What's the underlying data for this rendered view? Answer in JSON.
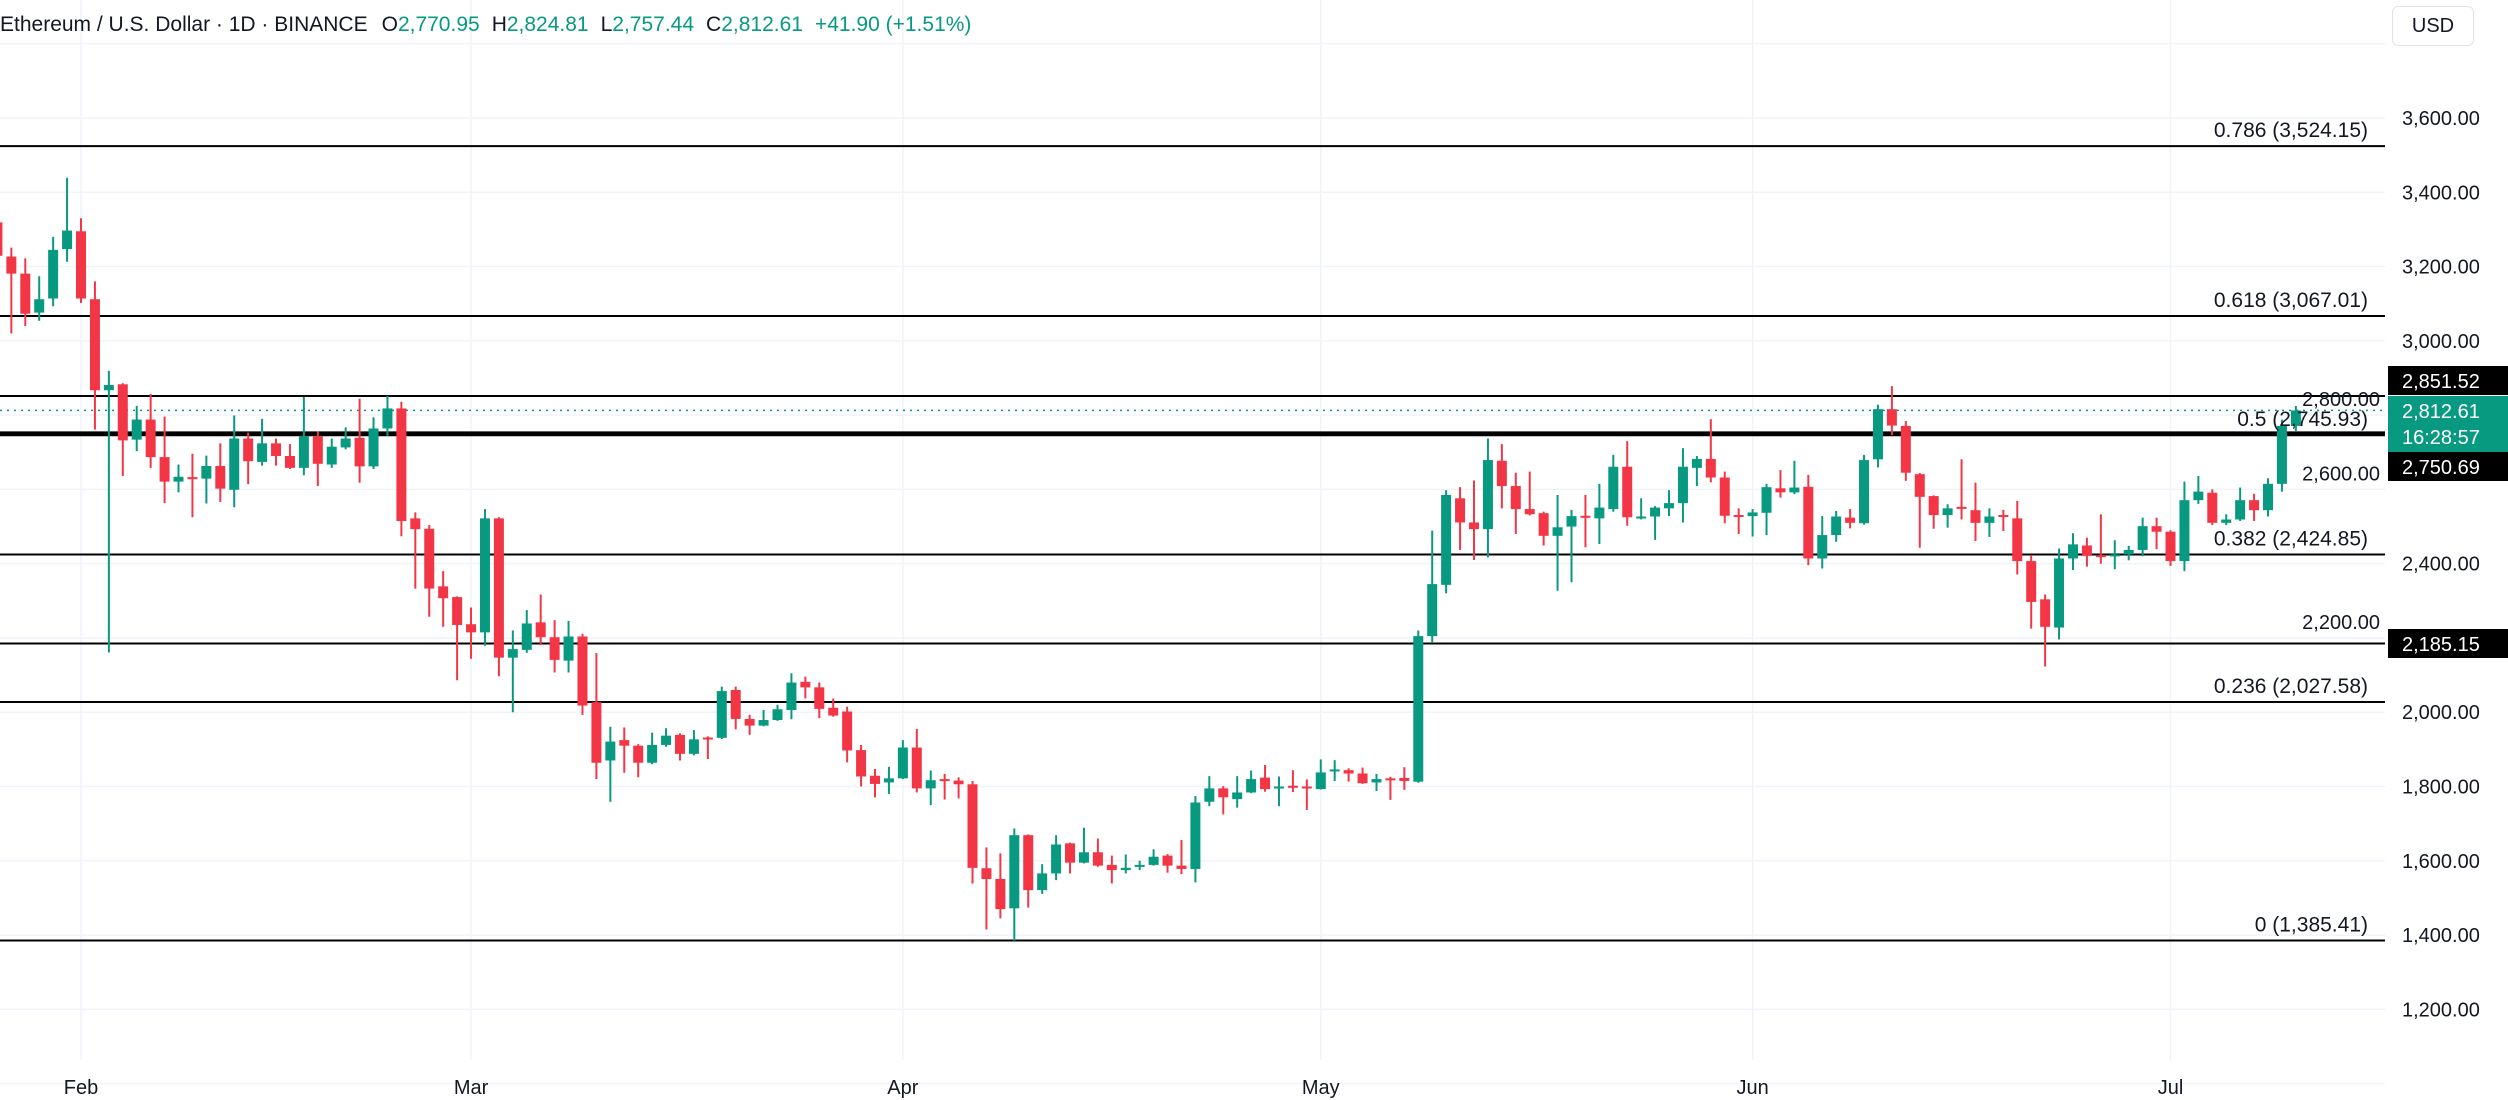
{
  "header": {
    "symbol": "Ethereum / U.S. Dollar · 1D · BINANCE",
    "open_key": "O",
    "open": "2,770.95",
    "high_key": "H",
    "high": "2,824.81",
    "low_key": "L",
    "low": "2,757.44",
    "close_key": "C",
    "close": "2,812.61",
    "change": "+41.90 (+1.51%)"
  },
  "currency_button": "USD",
  "colors": {
    "up": "#089981",
    "down": "#F23645",
    "level_line": "#000000",
    "grid": "#f0f3fa"
  },
  "chart_data": {
    "type": "candlestick",
    "title": "Ethereum / U.S. Dollar · 1D · BINANCE",
    "ylim": [
      1000,
      3800
    ],
    "grid": true,
    "y_ticks": [
      "1,200.00",
      "1,400.00",
      "1,600.00",
      "1,800.00",
      "2,000.00",
      "2,200.00",
      "2,400.00",
      "2,600.00",
      "2,800.00",
      "3,000.00",
      "3,200.00",
      "3,400.00",
      "3,600.00"
    ],
    "y_tick_values": [
      1200,
      1400,
      1600,
      1800,
      2000,
      2200,
      2400,
      2600,
      2800,
      3000,
      3200,
      3400,
      3600
    ],
    "x_ticks": [
      {
        "label": "Feb",
        "date": "Feb 1"
      },
      {
        "label": "Mar",
        "date": "Mar 1"
      },
      {
        "label": "Apr",
        "date": "Apr 1"
      },
      {
        "label": "May",
        "date": "May 1"
      },
      {
        "label": "Jun",
        "date": "Jun 1"
      },
      {
        "label": "Jul",
        "date": "Jul 1"
      }
    ],
    "fib_levels": [
      {
        "level": 0.786,
        "price": 3524.15,
        "label": "0.786 (3,524.15)"
      },
      {
        "level": 0.618,
        "price": 3067.01,
        "label": "0.618 (3,067.01)"
      },
      {
        "level": 0.5,
        "price": 2745.93,
        "label": "0.5 (2,745.93)"
      },
      {
        "level": 0.382,
        "price": 2424.85,
        "label": "0.382 (2,424.85)"
      },
      {
        "level": 0.236,
        "price": 2027.58,
        "label": "0.236 (2,027.58)"
      },
      {
        "level": 0,
        "price": 1385.41,
        "label": "0 (1,385.41)"
      }
    ],
    "horizontal_lines": [
      {
        "price": 2851.52,
        "label": "2,851.52"
      },
      {
        "price": 2750.69,
        "label": "2,750.69",
        "thick": true
      },
      {
        "price": 2185.15,
        "label": "2,185.15"
      }
    ],
    "last_price": {
      "price": 2812.61,
      "label": "2,812.61",
      "countdown": "16:28:57"
    },
    "candles": [
      [
        "Jan 26",
        3319,
        3345,
        3220,
        3229
      ],
      [
        "Jan 27",
        3227,
        3251,
        3020,
        3181
      ],
      [
        "Jan 28",
        3181,
        3222,
        3040,
        3073
      ],
      [
        "Jan 29",
        3076,
        3174,
        3054,
        3112
      ],
      [
        "Jan 30",
        3114,
        3280,
        3093,
        3245
      ],
      [
        "Jan 31",
        3247,
        3439,
        3213,
        3297
      ],
      [
        "Feb 1",
        3295,
        3330,
        3102,
        3114
      ],
      [
        "Feb 2",
        3112,
        3160,
        2761,
        2867
      ],
      [
        "Feb 3",
        2867,
        2919,
        2161,
        2881
      ],
      [
        "Feb 4",
        2883,
        2886,
        2636,
        2732
      ],
      [
        "Feb 5",
        2734,
        2825,
        2703,
        2788
      ],
      [
        "Feb 6",
        2788,
        2857,
        2658,
        2687
      ],
      [
        "Feb 7",
        2687,
        2796,
        2563,
        2621
      ],
      [
        "Feb 8",
        2621,
        2667,
        2592,
        2634
      ],
      [
        "Feb 9",
        2633,
        2696,
        2525,
        2629
      ],
      [
        "Feb 10",
        2629,
        2691,
        2562,
        2663
      ],
      [
        "Feb 11",
        2663,
        2724,
        2566,
        2602
      ],
      [
        "Feb 12",
        2599,
        2799,
        2552,
        2737
      ],
      [
        "Feb 13",
        2737,
        2753,
        2614,
        2676
      ],
      [
        "Feb 14",
        2674,
        2790,
        2664,
        2724
      ],
      [
        "Feb 15",
        2724,
        2737,
        2664,
        2690
      ],
      [
        "Feb 16",
        2690,
        2722,
        2655,
        2658
      ],
      [
        "Feb 17",
        2658,
        2849,
        2638,
        2743
      ],
      [
        "Feb 18",
        2743,
        2756,
        2609,
        2669
      ],
      [
        "Feb 19",
        2667,
        2737,
        2658,
        2715
      ],
      [
        "Feb 20",
        2713,
        2767,
        2708,
        2737
      ],
      [
        "Feb 21",
        2739,
        2844,
        2618,
        2662
      ],
      [
        "Feb 22",
        2662,
        2794,
        2655,
        2764
      ],
      [
        "Feb 23",
        2764,
        2852,
        2744,
        2818
      ],
      [
        "Feb 24",
        2818,
        2836,
        2474,
        2515
      ],
      [
        "Feb 25",
        2522,
        2538,
        2333,
        2493
      ],
      [
        "Feb 26",
        2494,
        2504,
        2257,
        2333
      ],
      [
        "Feb 27",
        2339,
        2380,
        2230,
        2307
      ],
      [
        "Feb 28",
        2310,
        2312,
        2086,
        2235
      ],
      [
        "Mar 1",
        2237,
        2282,
        2144,
        2215
      ],
      [
        "Mar 2",
        2215,
        2547,
        2179,
        2522
      ],
      [
        "Mar 3",
        2522,
        2525,
        2097,
        2147
      ],
      [
        "Mar 4",
        2147,
        2220,
        2000,
        2170
      ],
      [
        "Mar 5",
        2168,
        2275,
        2160,
        2239
      ],
      [
        "Mar 6",
        2242,
        2317,
        2181,
        2202
      ],
      [
        "Mar 7",
        2202,
        2248,
        2107,
        2141
      ],
      [
        "Mar 8",
        2139,
        2246,
        2107,
        2204
      ],
      [
        "Mar 9",
        2204,
        2211,
        1993,
        2018
      ],
      [
        "Mar 10",
        2027,
        2159,
        1820,
        1864
      ],
      [
        "Mar 11",
        1870,
        1961,
        1759,
        1921
      ],
      [
        "Mar 12",
        1925,
        1959,
        1837,
        1910
      ],
      [
        "Mar 13",
        1910,
        1914,
        1825,
        1864
      ],
      [
        "Mar 14",
        1864,
        1945,
        1860,
        1912
      ],
      [
        "Mar 15",
        1912,
        1957,
        1907,
        1937
      ],
      [
        "Mar 16",
        1939,
        1943,
        1870,
        1888
      ],
      [
        "Mar 17",
        1888,
        1952,
        1884,
        1927
      ],
      [
        "Mar 18",
        1932,
        1935,
        1874,
        1930
      ],
      [
        "Mar 19",
        1931,
        2069,
        1928,
        2057
      ],
      [
        "Mar 20",
        2060,
        2069,
        1954,
        1982
      ],
      [
        "Mar 21",
        1982,
        1993,
        1939,
        1964
      ],
      [
        "Mar 22",
        1964,
        2006,
        1962,
        1979
      ],
      [
        "Mar 23",
        1979,
        2020,
        1977,
        2008
      ],
      [
        "Mar 24",
        2006,
        2105,
        1981,
        2080
      ],
      [
        "Mar 25",
        2082,
        2096,
        2037,
        2067
      ],
      [
        "Mar 26",
        2067,
        2080,
        1984,
        2009
      ],
      [
        "Mar 27",
        2012,
        2037,
        1988,
        1991
      ],
      [
        "Mar 28",
        2002,
        2015,
        1865,
        1897
      ],
      [
        "Mar 29",
        1898,
        1912,
        1800,
        1827
      ],
      [
        "Mar 30",
        1829,
        1847,
        1771,
        1807
      ],
      [
        "Mar 31",
        1811,
        1853,
        1780,
        1822
      ],
      [
        "Apr 1",
        1822,
        1925,
        1820,
        1905
      ],
      [
        "Apr 2",
        1905,
        1955,
        1784,
        1795
      ],
      [
        "Apr 3",
        1795,
        1843,
        1750,
        1817
      ],
      [
        "Apr 4",
        1820,
        1834,
        1765,
        1819
      ],
      [
        "Apr 5",
        1816,
        1825,
        1768,
        1806
      ],
      [
        "Apr 6",
        1806,
        1815,
        1539,
        1581
      ],
      [
        "Apr 7",
        1580,
        1636,
        1415,
        1551
      ],
      [
        "Apr 8",
        1551,
        1620,
        1445,
        1470
      ],
      [
        "Apr 9",
        1472,
        1687,
        1385,
        1669
      ],
      [
        "Apr 10",
        1669,
        1671,
        1474,
        1521
      ],
      [
        "Apr 11",
        1521,
        1591,
        1511,
        1566
      ],
      [
        "Apr 12",
        1566,
        1669,
        1548,
        1644
      ],
      [
        "Apr 13",
        1647,
        1649,
        1566,
        1595
      ],
      [
        "Apr 14",
        1595,
        1689,
        1593,
        1623
      ],
      [
        "Apr 15",
        1623,
        1660,
        1584,
        1587
      ],
      [
        "Apr 16",
        1589,
        1614,
        1539,
        1575
      ],
      [
        "Apr 17",
        1575,
        1617,
        1566,
        1581
      ],
      [
        "Apr 18",
        1587,
        1600,
        1575,
        1589
      ],
      [
        "Apr 19",
        1589,
        1631,
        1587,
        1611
      ],
      [
        "Apr 20",
        1614,
        1618,
        1568,
        1587
      ],
      [
        "Apr 21",
        1587,
        1656,
        1564,
        1578
      ],
      [
        "Apr 22",
        1578,
        1774,
        1542,
        1757
      ],
      [
        "Apr 23",
        1759,
        1828,
        1747,
        1795
      ],
      [
        "Apr 24",
        1795,
        1801,
        1725,
        1771
      ],
      [
        "Apr 25",
        1766,
        1828,
        1743,
        1784
      ],
      [
        "Apr 26",
        1784,
        1843,
        1782,
        1820
      ],
      [
        "Apr 27",
        1824,
        1858,
        1786,
        1793
      ],
      [
        "Apr 28",
        1795,
        1827,
        1747,
        1800
      ],
      [
        "Apr 29",
        1802,
        1844,
        1785,
        1800
      ],
      [
        "Apr 30",
        1800,
        1819,
        1737,
        1798
      ],
      [
        "May 1",
        1793,
        1873,
        1792,
        1838
      ],
      [
        "May 2",
        1844,
        1871,
        1815,
        1846
      ],
      [
        "May 3",
        1844,
        1849,
        1813,
        1835
      ],
      [
        "May 4",
        1835,
        1851,
        1807,
        1809
      ],
      [
        "May 5",
        1811,
        1834,
        1788,
        1820
      ],
      [
        "May 6",
        1822,
        1826,
        1764,
        1818
      ],
      [
        "May 7",
        1823,
        1852,
        1791,
        1815
      ],
      [
        "May 8",
        1813,
        2220,
        1810,
        2205
      ],
      [
        "May 9",
        2205,
        2489,
        2186,
        2345
      ],
      [
        "May 10",
        2343,
        2598,
        2320,
        2585
      ],
      [
        "May 11",
        2576,
        2606,
        2437,
        2511
      ],
      [
        "May 12",
        2511,
        2624,
        2410,
        2493
      ],
      [
        "May 13",
        2493,
        2737,
        2417,
        2679
      ],
      [
        "May 14",
        2677,
        2722,
        2549,
        2609
      ],
      [
        "May 15",
        2609,
        2645,
        2480,
        2547
      ],
      [
        "May 16",
        2547,
        2648,
        2530,
        2533
      ],
      [
        "May 17",
        2536,
        2540,
        2449,
        2475
      ],
      [
        "May 18",
        2475,
        2585,
        2327,
        2498
      ],
      [
        "May 19",
        2500,
        2545,
        2350,
        2528
      ],
      [
        "May 20",
        2529,
        2585,
        2444,
        2527
      ],
      [
        "May 21",
        2522,
        2615,
        2453,
        2551
      ],
      [
        "May 22",
        2547,
        2693,
        2540,
        2661
      ],
      [
        "May 23",
        2661,
        2730,
        2502,
        2525
      ],
      [
        "May 24",
        2524,
        2576,
        2519,
        2527
      ],
      [
        "May 25",
        2527,
        2555,
        2464,
        2551
      ],
      [
        "May 26",
        2549,
        2598,
        2528,
        2563
      ],
      [
        "May 27",
        2563,
        2711,
        2511,
        2661
      ],
      [
        "May 28",
        2658,
        2690,
        2609,
        2682
      ],
      [
        "May 29",
        2682,
        2789,
        2619,
        2632
      ],
      [
        "May 30",
        2632,
        2648,
        2509,
        2529
      ],
      [
        "May 31",
        2531,
        2549,
        2480,
        2528
      ],
      [
        "Jun 1",
        2528,
        2547,
        2473,
        2538
      ],
      [
        "Jun 2",
        2537,
        2615,
        2477,
        2606
      ],
      [
        "Jun 3",
        2603,
        2652,
        2578,
        2592
      ],
      [
        "Jun 4",
        2592,
        2677,
        2587,
        2605
      ],
      [
        "Jun 5",
        2607,
        2639,
        2396,
        2414
      ],
      [
        "Jun 6",
        2414,
        2528,
        2387,
        2477
      ],
      [
        "Jun 7",
        2477,
        2542,
        2459,
        2527
      ],
      [
        "Jun 8",
        2524,
        2547,
        2495,
        2510
      ],
      [
        "Jun 9",
        2509,
        2693,
        2505,
        2679
      ],
      [
        "Jun 10",
        2681,
        2828,
        2659,
        2816
      ],
      [
        "Jun 11",
        2816,
        2878,
        2746,
        2772
      ],
      [
        "Jun 12",
        2771,
        2784,
        2623,
        2645
      ],
      [
        "Jun 13",
        2641,
        2644,
        2443,
        2580
      ],
      [
        "Jun 14",
        2582,
        2584,
        2494,
        2531
      ],
      [
        "Jun 15",
        2531,
        2560,
        2497,
        2549
      ],
      [
        "Jun 16",
        2553,
        2681,
        2519,
        2551
      ],
      [
        "Jun 17",
        2544,
        2618,
        2461,
        2510
      ],
      [
        "Jun 18",
        2510,
        2549,
        2472,
        2527
      ],
      [
        "Jun 19",
        2531,
        2545,
        2488,
        2529
      ],
      [
        "Jun 20",
        2522,
        2569,
        2371,
        2407
      ],
      [
        "Jun 21",
        2407,
        2423,
        2225,
        2297
      ],
      [
        "Jun 22",
        2304,
        2317,
        2123,
        2230
      ],
      [
        "Jun 23",
        2228,
        2441,
        2196,
        2414
      ],
      [
        "Jun 24",
        2414,
        2482,
        2383,
        2452
      ],
      [
        "Jun 25",
        2449,
        2470,
        2392,
        2421
      ],
      [
        "Jun 26",
        2423,
        2533,
        2400,
        2421
      ],
      [
        "Jun 27",
        2421,
        2463,
        2385,
        2425
      ],
      [
        "Jun 28",
        2425,
        2448,
        2409,
        2437
      ],
      [
        "Jun 29",
        2437,
        2524,
        2420,
        2501
      ],
      [
        "Jun 30",
        2501,
        2524,
        2439,
        2486
      ],
      [
        "Jul 1",
        2486,
        2490,
        2394,
        2407
      ],
      [
        "Jul 2",
        2407,
        2621,
        2380,
        2571
      ],
      [
        "Jul 3",
        2571,
        2636,
        2561,
        2594
      ],
      [
        "Jul 4",
        2591,
        2600,
        2504,
        2510
      ],
      [
        "Jul 5",
        2510,
        2533,
        2504,
        2519
      ],
      [
        "Jul 6",
        2519,
        2605,
        2515,
        2571
      ],
      [
        "Jul 7",
        2571,
        2588,
        2515,
        2544
      ],
      [
        "Jul 8",
        2544,
        2630,
        2527,
        2615
      ],
      [
        "Jul 9",
        2615,
        2788,
        2594,
        2771
      ],
      [
        "Jul 10",
        2770.95,
        2824.81,
        2757.44,
        2812.61
      ]
    ]
  }
}
